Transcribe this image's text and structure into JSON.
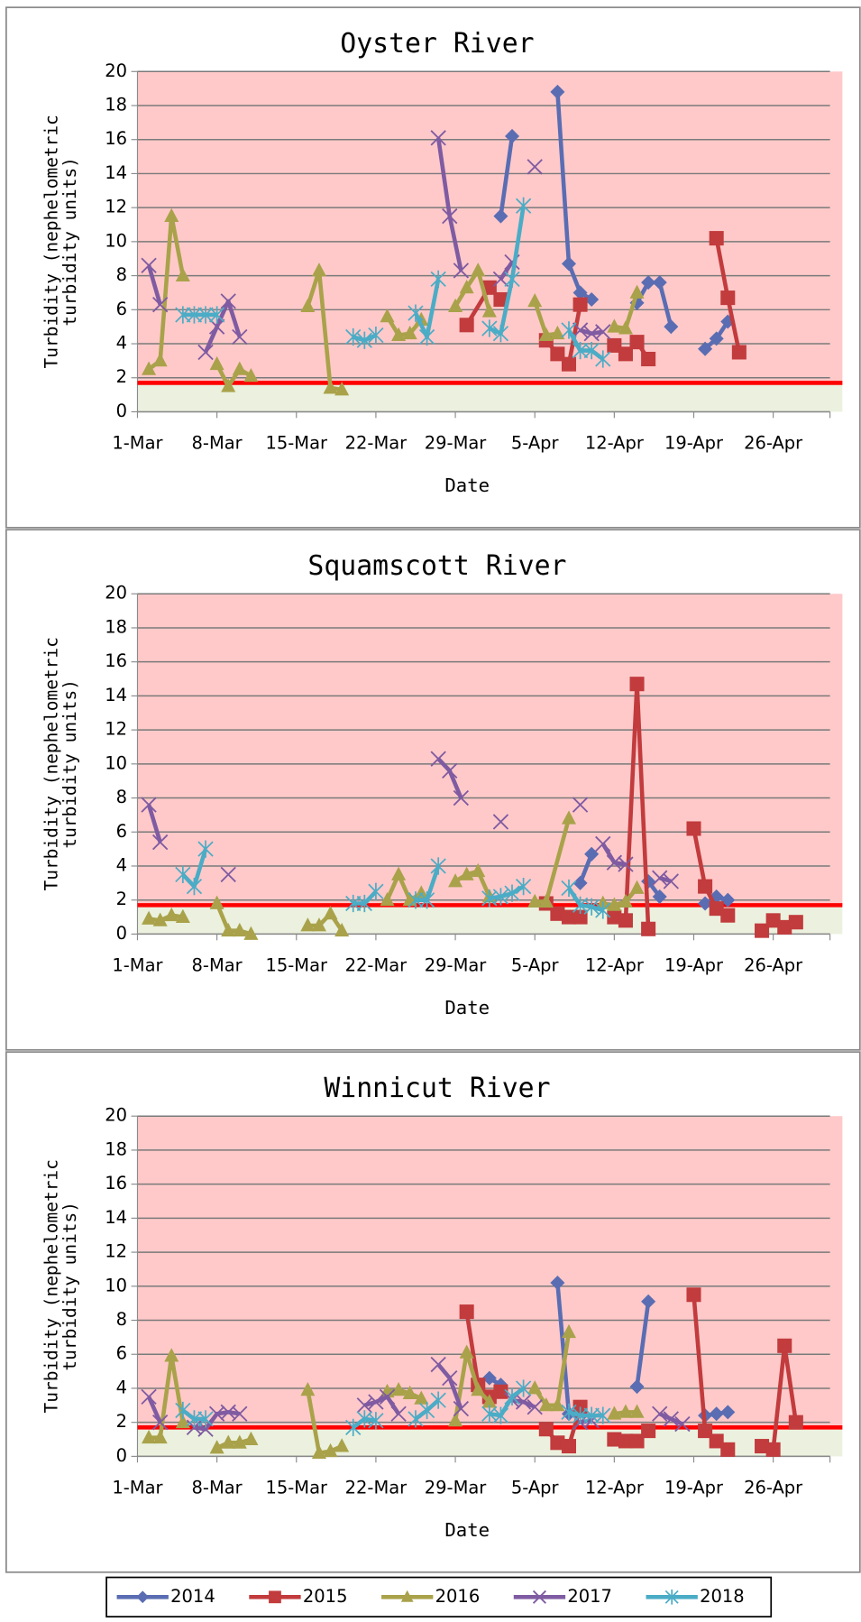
{
  "chart_data": [
    {
      "type": "line",
      "title": "Oyster River",
      "xlabel": "Date",
      "ylabel": "Turbidity (nephelometric turbidity units)",
      "xlim": [
        0,
        61
      ],
      "xticks": [
        {
          "value": 0,
          "label": "1-Mar"
        },
        {
          "value": 7,
          "label": "8-Mar"
        },
        {
          "value": 14,
          "label": "15-Mar"
        },
        {
          "value": 21,
          "label": "22-Mar"
        },
        {
          "value": 28,
          "label": "29-Mar"
        },
        {
          "value": 35,
          "label": "5-Apr"
        },
        {
          "value": 42,
          "label": "12-Apr"
        },
        {
          "value": 49,
          "label": "19-Apr"
        },
        {
          "value": 56,
          "label": "26-Apr"
        }
      ],
      "ylim": [
        0,
        20
      ],
      "yticks": [
        0,
        2,
        4,
        6,
        8,
        10,
        12,
        14,
        16,
        18,
        20
      ],
      "grid": true,
      "threshold": 1.7,
      "threshold_color": "#ff0000",
      "above_color": "#ffc9c9",
      "below_color": "#ebf1de",
      "series": [
        {
          "name": "2014",
          "color": "#5a6db3",
          "marker": "diamond",
          "x": [
            32,
            33,
            null,
            37,
            38,
            39,
            40,
            null,
            44,
            45,
            46,
            47,
            null,
            50,
            51,
            52
          ],
          "values": [
            11.5,
            16.2,
            null,
            18.8,
            8.7,
            7,
            6.6,
            null,
            6.4,
            7.6,
            7.6,
            5,
            null,
            3.7,
            4.3,
            5.3
          ]
        },
        {
          "name": "2015",
          "color": "#c23b3d",
          "marker": "square",
          "x": [
            29,
            31,
            32,
            null,
            36,
            37,
            38,
            39,
            null,
            42,
            43,
            44,
            45,
            null,
            51,
            52,
            53
          ],
          "values": [
            5.1,
            7.3,
            6.6,
            null,
            4.2,
            3.4,
            2.8,
            6.3,
            null,
            3.9,
            3.4,
            4.1,
            3.1,
            null,
            10.2,
            6.7,
            3.5
          ]
        },
        {
          "name": "2016",
          "color": "#a9a24a",
          "marker": "triangle",
          "x": [
            1,
            2,
            3,
            4,
            null,
            7,
            8,
            9,
            10,
            null,
            15,
            16,
            17,
            18,
            null,
            22,
            23,
            24,
            25,
            null,
            28,
            29,
            30,
            31,
            null,
            35,
            36,
            37,
            null,
            42,
            43,
            44
          ],
          "values": [
            2.5,
            3,
            11.5,
            8,
            null,
            2.8,
            1.5,
            2.5,
            2.1,
            null,
            6.2,
            8.3,
            1.4,
            1.3,
            null,
            5.6,
            4.5,
            4.6,
            5.4,
            null,
            6.2,
            7.3,
            8.3,
            5.9,
            null,
            6.5,
            4.5,
            4.6,
            null,
            5,
            4.9,
            7
          ]
        },
        {
          "name": "2017",
          "color": "#7f5ba2",
          "marker": "x",
          "x": [
            1,
            2,
            null,
            6,
            7,
            8,
            9,
            null,
            26.5,
            27.5,
            28.5,
            null,
            32,
            33,
            null,
            35,
            null,
            39,
            40,
            41
          ],
          "values": [
            8.6,
            6.3,
            null,
            3.5,
            5,
            6.5,
            4.4,
            null,
            16.1,
            11.5,
            8.3,
            null,
            7.8,
            8.8,
            null,
            14.4,
            null,
            4.8,
            4.6,
            4.7
          ]
        },
        {
          "name": "2018",
          "color": "#4bacc6",
          "marker": "star",
          "x": [
            4,
            5,
            6,
            7,
            null,
            19,
            20,
            21,
            null,
            24.5,
            25.5,
            26.5,
            null,
            31,
            32,
            33,
            34,
            null,
            38,
            39,
            40,
            41
          ],
          "values": [
            5.7,
            5.7,
            5.7,
            5.7,
            null,
            4.4,
            4.2,
            4.5,
            null,
            5.8,
            4.4,
            7.8,
            null,
            4.9,
            4.6,
            7.8,
            12.1,
            null,
            4.8,
            3.6,
            3.6,
            3.1
          ]
        }
      ]
    },
    {
      "type": "line",
      "title": "Squamscott River",
      "xlabel": "Date",
      "ylabel": "Turbidity (nephelometric turbidity units)",
      "xlim": [
        0,
        61
      ],
      "xticks": [
        {
          "value": 0,
          "label": "1-Mar"
        },
        {
          "value": 7,
          "label": "8-Mar"
        },
        {
          "value": 14,
          "label": "15-Mar"
        },
        {
          "value": 21,
          "label": "22-Mar"
        },
        {
          "value": 28,
          "label": "29-Mar"
        },
        {
          "value": 35,
          "label": "5-Apr"
        },
        {
          "value": 42,
          "label": "12-Apr"
        },
        {
          "value": 49,
          "label": "19-Apr"
        },
        {
          "value": 56,
          "label": "26-Apr"
        }
      ],
      "ylim": [
        0,
        20
      ],
      "yticks": [
        0,
        2,
        4,
        6,
        8,
        10,
        12,
        14,
        16,
        18,
        20
      ],
      "grid": true,
      "threshold": 1.7,
      "threshold_color": "#ff0000",
      "above_color": "#ffc9c9",
      "below_color": "#ebf1de",
      "series": [
        {
          "name": "2014",
          "color": "#5a6db3",
          "marker": "diamond",
          "x": [
            39,
            40,
            null,
            45,
            46,
            null,
            50,
            51,
            52
          ],
          "values": [
            3,
            4.7,
            null,
            3.1,
            2.2,
            null,
            1.8,
            2.2,
            2
          ]
        },
        {
          "name": "2015",
          "color": "#c23b3d",
          "marker": "square",
          "x": [
            36,
            37,
            38,
            39,
            null,
            42,
            43,
            44,
            45,
            null,
            49,
            50,
            51,
            52,
            null,
            55,
            56,
            57,
            58
          ],
          "values": [
            1.8,
            1.2,
            1,
            1,
            null,
            1,
            0.8,
            14.7,
            0.3,
            null,
            6.2,
            2.8,
            1.5,
            1.1,
            null,
            0.2,
            0.8,
            0.4,
            0.7
          ]
        },
        {
          "name": "2016",
          "color": "#a9a24a",
          "marker": "triangle",
          "x": [
            1,
            2,
            3,
            4,
            null,
            7,
            8,
            9,
            10,
            null,
            15,
            16,
            17,
            18,
            null,
            22,
            23,
            24,
            25,
            null,
            28,
            29,
            30,
            31,
            null,
            35,
            36,
            38,
            null,
            41,
            42,
            43,
            44
          ],
          "values": [
            0.9,
            0.8,
            1.1,
            1,
            null,
            1.8,
            0.2,
            0.2,
            0,
            null,
            0.5,
            0.5,
            1.2,
            0.2,
            null,
            2,
            3.5,
            2,
            2.4,
            null,
            3.1,
            3.5,
            3.7,
            2.2,
            null,
            1.9,
            1.9,
            6.8,
            null,
            1.8,
            1.7,
            1.9,
            2.7
          ]
        },
        {
          "name": "2017",
          "color": "#7f5ba2",
          "marker": "x",
          "x": [
            1,
            2,
            null,
            8,
            null,
            26.5,
            27.5,
            28.5,
            null,
            32,
            null,
            39,
            null,
            41,
            42,
            43,
            null,
            46,
            47
          ],
          "values": [
            7.6,
            5.4,
            null,
            3.5,
            null,
            10.3,
            9.6,
            8,
            null,
            6.6,
            null,
            7.6,
            null,
            5.3,
            4.2,
            4.1,
            null,
            3.3,
            3.1
          ]
        },
        {
          "name": "2018",
          "color": "#4bacc6",
          "marker": "star",
          "x": [
            4,
            5,
            6,
            null,
            19,
            20,
            21,
            null,
            24.5,
            25.5,
            26.5,
            null,
            31,
            32,
            33,
            34,
            null,
            38,
            39,
            40,
            41
          ],
          "values": [
            3.5,
            2.8,
            5,
            null,
            1.8,
            1.8,
            2.5,
            null,
            2,
            2,
            4,
            null,
            2.1,
            2.2,
            2.4,
            2.8,
            null,
            2.7,
            1.7,
            1.6,
            1.4
          ]
        }
      ]
    },
    {
      "type": "line",
      "title": "Winnicut River",
      "xlabel": "Date",
      "ylabel": "Turbidity (nephelometric turbidity units)",
      "xlim": [
        0,
        61
      ],
      "xticks": [
        {
          "value": 0,
          "label": "1-Mar"
        },
        {
          "value": 7,
          "label": "8-Mar"
        },
        {
          "value": 14,
          "label": "15-Mar"
        },
        {
          "value": 21,
          "label": "22-Mar"
        },
        {
          "value": 28,
          "label": "29-Mar"
        },
        {
          "value": 35,
          "label": "5-Apr"
        },
        {
          "value": 42,
          "label": "12-Apr"
        },
        {
          "value": 49,
          "label": "19-Apr"
        },
        {
          "value": 56,
          "label": "26-Apr"
        }
      ],
      "ylim": [
        0,
        20
      ],
      "yticks": [
        0,
        2,
        4,
        6,
        8,
        10,
        12,
        14,
        16,
        18,
        20
      ],
      "grid": true,
      "threshold": 1.7,
      "threshold_color": "#ff0000",
      "above_color": "#ffc9c9",
      "below_color": "#ebf1de",
      "series": [
        {
          "name": "2014",
          "color": "#5a6db3",
          "marker": "diamond",
          "x": [
            31,
            32,
            null,
            37,
            38,
            null,
            44,
            45,
            null,
            50,
            51,
            52
          ],
          "values": [
            4.6,
            4.2,
            null,
            10.2,
            2.5,
            null,
            4.1,
            9.1,
            null,
            2.4,
            2.5,
            2.6
          ]
        },
        {
          "name": "2015",
          "color": "#c23b3d",
          "marker": "square",
          "x": [
            29,
            30,
            31,
            32,
            null,
            36,
            37,
            38,
            39,
            null,
            42,
            43,
            44,
            45,
            null,
            49,
            50,
            51,
            52,
            null,
            55,
            56,
            57,
            58
          ],
          "values": [
            8.5,
            4.2,
            3.5,
            3.8,
            null,
            1.6,
            0.8,
            0.6,
            2.9,
            null,
            1,
            0.9,
            0.9,
            1.5,
            null,
            9.5,
            1.5,
            0.9,
            0.4,
            null,
            0.6,
            0.4,
            6.5,
            2
          ]
        },
        {
          "name": "2016",
          "color": "#a9a24a",
          "marker": "triangle",
          "x": [
            1,
            2,
            3,
            4,
            null,
            7,
            8,
            9,
            10,
            null,
            15,
            16,
            17,
            18,
            null,
            22,
            23,
            24,
            25,
            null,
            28,
            29,
            30,
            31,
            null,
            35,
            36,
            37,
            38,
            null,
            42,
            43,
            44
          ],
          "values": [
            1.1,
            1.1,
            5.9,
            2,
            null,
            0.5,
            0.8,
            0.8,
            1,
            null,
            3.9,
            0.2,
            0.3,
            0.6,
            null,
            3.8,
            3.9,
            3.7,
            3.4,
            null,
            2.1,
            6.1,
            3.9,
            3.2,
            null,
            4,
            3,
            3,
            7.3,
            null,
            2.5,
            2.6,
            2.6
          ]
        },
        {
          "name": "2017",
          "color": "#7f5ba2",
          "marker": "x",
          "x": [
            1,
            2,
            null,
            5,
            6,
            7,
            8,
            9,
            null,
            20,
            21,
            22,
            23,
            null,
            26.5,
            27.5,
            28.5,
            null,
            33,
            34,
            35,
            null,
            39,
            40,
            null,
            46,
            47,
            48
          ],
          "values": [
            3.5,
            2,
            null,
            1.7,
            1.6,
            2.5,
            2.6,
            2.5,
            null,
            3,
            3.2,
            3.5,
            2.5,
            null,
            5.4,
            4.6,
            2.8,
            null,
            3.3,
            3.2,
            2.9,
            null,
            2,
            2.1,
            null,
            2.5,
            2.2,
            1.9
          ]
        },
        {
          "name": "2018",
          "color": "#4bacc6",
          "marker": "star",
          "x": [
            4,
            5,
            6,
            null,
            19,
            20,
            21,
            null,
            24.5,
            25.5,
            26.5,
            null,
            31,
            32,
            33,
            34,
            null,
            38,
            39,
            40,
            41
          ],
          "values": [
            2.7,
            2.2,
            2.2,
            null,
            1.7,
            2.2,
            2.1,
            null,
            2.2,
            2.7,
            3.3,
            null,
            2.5,
            2.4,
            3.5,
            4,
            null,
            2.6,
            2.4,
            2.4,
            2.4
          ]
        }
      ]
    }
  ]
}
